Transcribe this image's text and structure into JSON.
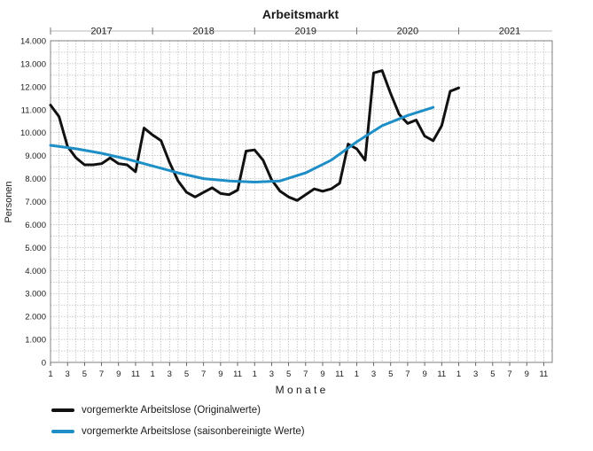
{
  "chart_data": {
    "type": "line",
    "title": "Arbeitsmarkt",
    "xlabel": "M o n a t e",
    "ylabel": "Personen",
    "ylim": [
      0,
      14000
    ],
    "yticks": [
      "0",
      "1.000",
      "2.000",
      "3.000",
      "4.000",
      "5.000",
      "6.000",
      "7.000",
      "8.000",
      "9.000",
      "10.000",
      "11.000",
      "12.000",
      "13.000",
      "14.000"
    ],
    "xtick_labels": [
      "1",
      "3",
      "5",
      "7",
      "9",
      "11",
      "1",
      "3",
      "5",
      "7",
      "9",
      "11",
      "1",
      "3",
      "5",
      "7",
      "9",
      "11",
      "1",
      "3",
      "5",
      "7",
      "9",
      "11",
      "1",
      "3",
      "5",
      "7",
      "9",
      "11"
    ],
    "years": [
      "2017",
      "2018",
      "2019",
      "2020",
      "2021"
    ],
    "grid": true,
    "legend_position": "bottom-left",
    "series": [
      {
        "name": "vorgemerkte Arbeitslose (Originalwerte)",
        "color": "#111111",
        "x": [
          0,
          1,
          2,
          3,
          4,
          5,
          6,
          7,
          8,
          9,
          10,
          11,
          12,
          13,
          14,
          15,
          16,
          17,
          18,
          19,
          20,
          21,
          22,
          23,
          24,
          25,
          26,
          27,
          28,
          29,
          30,
          31,
          32,
          33,
          34,
          35,
          36,
          37,
          38,
          39,
          40,
          41,
          42,
          43,
          44,
          45,
          46,
          47,
          48
        ],
        "values": [
          11200,
          10700,
          9400,
          8900,
          8600,
          8600,
          8650,
          8900,
          8650,
          8600,
          8300,
          10200,
          9900,
          9650,
          8700,
          7900,
          7400,
          7200,
          7400,
          7600,
          7350,
          7300,
          7500,
          9200,
          9250,
          8800,
          7950,
          7450,
          7200,
          7050,
          7300,
          7550,
          7450,
          7550,
          7800,
          9500,
          9300,
          8800,
          12600,
          12700,
          11700,
          10800,
          10400,
          10550,
          9850,
          9650,
          10300,
          11800,
          11950
        ]
      },
      {
        "name": "vorgemerkte Arbeitslose (saisonbereinigte Werte)",
        "color": "#1e8fc6",
        "x": [
          0,
          3,
          6,
          9,
          12,
          15,
          18,
          21,
          24,
          27,
          30,
          33,
          36,
          39,
          42,
          45
        ],
        "values": [
          9450,
          9300,
          9100,
          8850,
          8550,
          8250,
          8000,
          7900,
          7850,
          7900,
          8250,
          8800,
          9600,
          10300,
          10750,
          11100
        ]
      }
    ]
  }
}
